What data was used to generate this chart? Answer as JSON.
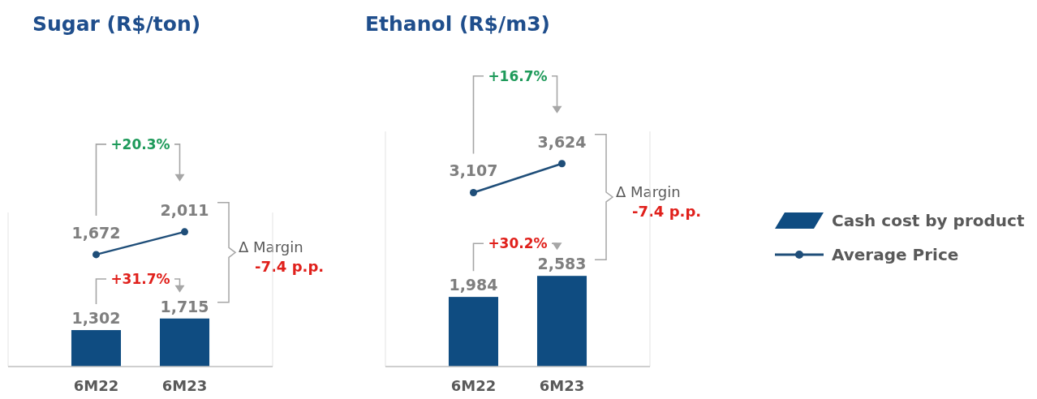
{
  "chart_data": [
    {
      "type": "bar",
      "title": "Sugar (R$/ton)",
      "categories": [
        "6M22",
        "6M23"
      ],
      "ylim": [
        0,
        5500
      ],
      "y2lim": [
        0,
        2300
      ],
      "series": [
        {
          "type": "bar",
          "color": "#0f4c81",
          "values": [
            1302,
            1715
          ],
          "value_labels": [
            "1,302",
            "1,715"
          ]
        },
        {
          "type": "line",
          "axis": "y2",
          "color": "#1f4e79",
          "marker": "circle",
          "values": [
            1672,
            2011
          ],
          "value_labels": [
            "1,672",
            "2,011"
          ]
        }
      ],
      "annotations": [
        "+20.3%",
        "+31.7%",
        "Δ Margin",
        "-7.4 p.p."
      ]
    },
    {
      "type": "bar",
      "title": "Ethanol (R$/m3)",
      "categories": [
        "6M22",
        "6M23"
      ],
      "ylim": [
        0,
        6700
      ],
      "y2lim": [
        0,
        4200
      ],
      "series": [
        {
          "type": "bar",
          "name": "Cash cost by product",
          "color": "#0f4c81",
          "values": [
            1984,
            2583
          ],
          "value_labels": [
            "1,984",
            "2,583"
          ]
        },
        {
          "type": "line",
          "axis": "y2",
          "name": "Average Price",
          "color": "#1f4e79",
          "marker": "circle",
          "values": [
            3107,
            3624
          ],
          "value_labels": [
            "3,107",
            "3,624"
          ]
        }
      ],
      "legend": "right",
      "annotations": [
        "+16.7%",
        "+30.2%",
        "Δ Margin",
        "-7.4 p.p."
      ]
    }
  ]
}
